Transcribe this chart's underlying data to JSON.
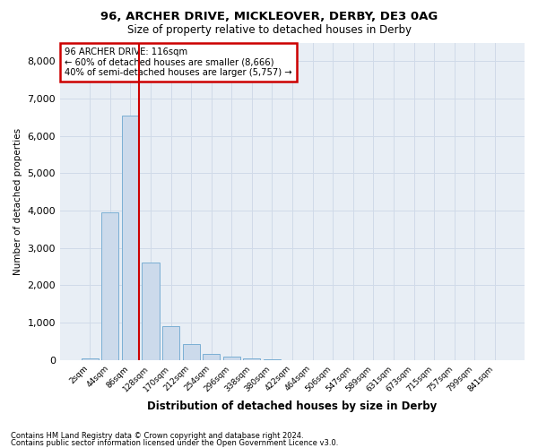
{
  "title1": "96, ARCHER DRIVE, MICKLEOVER, DERBY, DE3 0AG",
  "title2": "Size of property relative to detached houses in Derby",
  "xlabel": "Distribution of detached houses by size in Derby",
  "ylabel": "Number of detached properties",
  "footnote1": "Contains HM Land Registry data © Crown copyright and database right 2024.",
  "footnote2": "Contains public sector information licensed under the Open Government Licence v3.0.",
  "bar_labels": [
    "2sqm",
    "44sqm",
    "86sqm",
    "128sqm",
    "170sqm",
    "212sqm",
    "254sqm",
    "296sqm",
    "338sqm",
    "380sqm",
    "422sqm",
    "464sqm",
    "506sqm",
    "547sqm",
    "589sqm",
    "631sqm",
    "673sqm",
    "715sqm",
    "757sqm",
    "799sqm",
    "841sqm"
  ],
  "bar_values": [
    50,
    3950,
    6550,
    2600,
    900,
    420,
    155,
    80,
    30,
    10,
    5,
    2,
    0,
    0,
    0,
    0,
    0,
    0,
    0,
    0,
    0
  ],
  "bar_color": "#ccdaeb",
  "bar_edge_color": "#7bafd4",
  "vline_color": "#cc0000",
  "ylim": [
    0,
    8500
  ],
  "yticks": [
    0,
    1000,
    2000,
    3000,
    4000,
    5000,
    6000,
    7000,
    8000
  ],
  "annotation_title": "96 ARCHER DRIVE: 116sqm",
  "annotation_line1": "← 60% of detached houses are smaller (8,666)",
  "annotation_line2": "40% of semi-detached houses are larger (5,757) →",
  "annotation_box_color": "#ffffff",
  "annotation_box_edge": "#cc0000",
  "grid_color": "#d0dae8",
  "bg_color": "#e8eef5"
}
